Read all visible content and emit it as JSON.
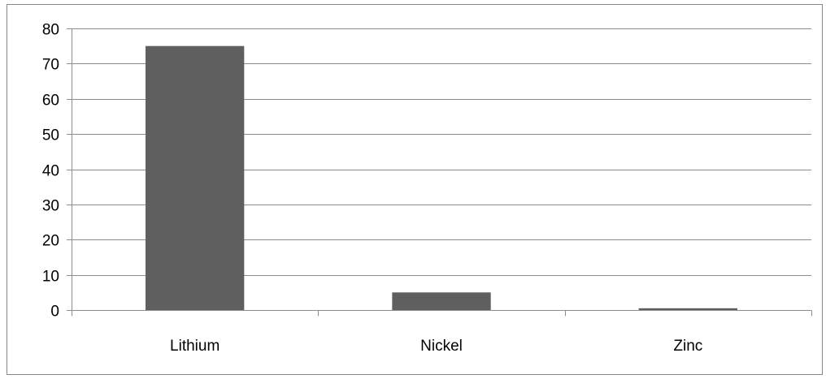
{
  "chart_data": {
    "type": "bar",
    "categories": [
      "Lithium",
      "Nickel",
      "Zinc"
    ],
    "values": [
      75,
      5,
      0.5
    ],
    "title": "",
    "xlabel": "",
    "ylabel": "",
    "ylim": [
      0,
      80
    ],
    "yticks": [
      0,
      10,
      20,
      30,
      40,
      50,
      60,
      70,
      80
    ],
    "grid": true,
    "legend": "none",
    "colors": {
      "bar": "#5f5f5f",
      "gridline": "#8c8c8c",
      "axis": "#8c8c8c",
      "text": "#000000"
    }
  }
}
